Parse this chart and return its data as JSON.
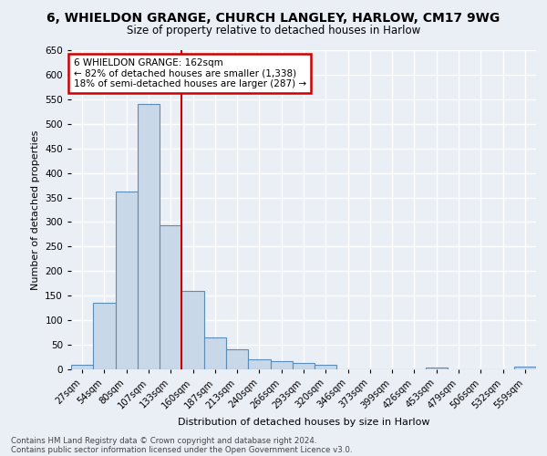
{
  "title1": "6, WHIELDON GRANGE, CHURCH LANGLEY, HARLOW, CM17 9WG",
  "title2": "Size of property relative to detached houses in Harlow",
  "xlabel": "Distribution of detached houses by size in Harlow",
  "ylabel": "Number of detached properties",
  "bar_labels": [
    "27sqm",
    "54sqm",
    "80sqm",
    "107sqm",
    "133sqm",
    "160sqm",
    "187sqm",
    "213sqm",
    "240sqm",
    "266sqm",
    "293sqm",
    "320sqm",
    "346sqm",
    "373sqm",
    "399sqm",
    "426sqm",
    "453sqm",
    "479sqm",
    "506sqm",
    "532sqm",
    "559sqm"
  ],
  "bar_values": [
    10,
    135,
    362,
    540,
    293,
    160,
    65,
    40,
    20,
    17,
    13,
    9,
    0,
    0,
    0,
    0,
    4,
    0,
    0,
    0,
    5
  ],
  "bar_color": "#c8d8e8",
  "bar_edge_color": "#5b8db8",
  "vline_color": "#cc0000",
  "ylim": [
    0,
    650
  ],
  "yticks": [
    0,
    50,
    100,
    150,
    200,
    250,
    300,
    350,
    400,
    450,
    500,
    550,
    600,
    650
  ],
  "annotation_text": "6 WHIELDON GRANGE: 162sqm\n← 82% of detached houses are smaller (1,338)\n18% of semi-detached houses are larger (287) →",
  "annotation_box_color": "#ffffff",
  "annotation_edge_color": "#cc0000",
  "footnote1": "Contains HM Land Registry data © Crown copyright and database right 2024.",
  "footnote2": "Contains public sector information licensed under the Open Government Licence v3.0.",
  "bg_color": "#eaeef5",
  "plot_bg_color": "#eaeef5",
  "grid_color": "#ffffff"
}
